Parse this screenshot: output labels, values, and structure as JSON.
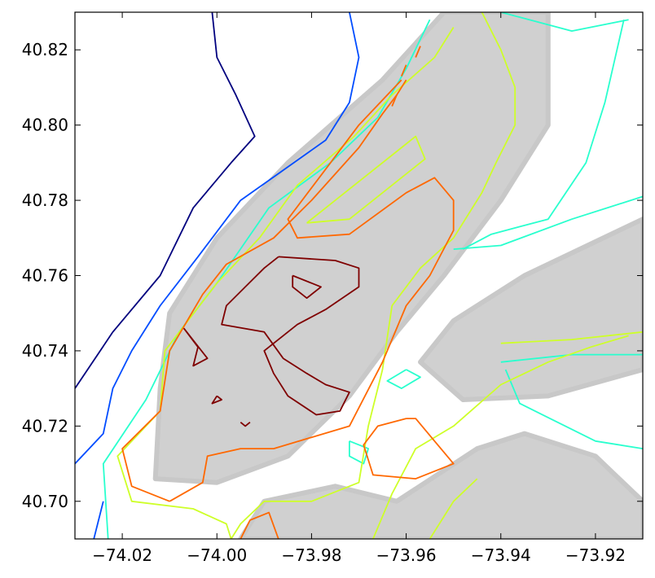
{
  "chart_data": {
    "type": "contour",
    "title": "",
    "xlabel": "",
    "ylabel": "",
    "xlim": [
      -74.03,
      -73.91
    ],
    "ylim": [
      40.69,
      40.83
    ],
    "x_ticks": [
      -74.02,
      -74.0,
      -73.98,
      -73.96,
      -73.94,
      -73.92
    ],
    "x_tick_labels": [
      "−74.02",
      "−74.00",
      "−73.98",
      "−73.96",
      "−73.94",
      "−73.92"
    ],
    "y_ticks": [
      40.7,
      40.72,
      40.74,
      40.76,
      40.78,
      40.8,
      40.82
    ],
    "y_tick_labels": [
      "40.70",
      "40.72",
      "40.74",
      "40.76",
      "40.78",
      "40.80",
      "40.82"
    ],
    "grid": false,
    "legend": "none",
    "scatter_color": "#c8c8c8",
    "scatter_regions": [
      {
        "name": "manhattan-core",
        "points": [
          [
            -74.013,
            40.706
          ],
          [
            -74.0,
            40.705
          ],
          [
            -73.985,
            40.712
          ],
          [
            -73.972,
            40.728
          ],
          [
            -73.962,
            40.745
          ],
          [
            -73.952,
            40.76
          ],
          [
            -73.94,
            40.78
          ],
          [
            -73.93,
            40.8
          ],
          [
            -73.93,
            40.83
          ],
          [
            -73.952,
            40.83
          ],
          [
            -73.965,
            40.812
          ],
          [
            -73.985,
            40.79
          ],
          [
            -74.0,
            40.77
          ],
          [
            -74.01,
            40.75
          ],
          [
            -74.012,
            40.73
          ]
        ]
      },
      {
        "name": "queens-grid",
        "points": [
          [
            -73.957,
            40.737
          ],
          [
            -73.95,
            40.748
          ],
          [
            -73.935,
            40.76
          ],
          [
            -73.91,
            40.775
          ],
          [
            -73.91,
            40.735
          ],
          [
            -73.93,
            40.728
          ],
          [
            -73.948,
            40.727
          ]
        ]
      },
      {
        "name": "brooklyn-grid",
        "points": [
          [
            -73.995,
            40.69
          ],
          [
            -73.99,
            40.7
          ],
          [
            -73.975,
            40.704
          ],
          [
            -73.962,
            40.7
          ],
          [
            -73.945,
            40.714
          ],
          [
            -73.935,
            40.718
          ],
          [
            -73.92,
            40.712
          ],
          [
            -73.91,
            40.7
          ],
          [
            -73.91,
            40.69
          ]
        ]
      }
    ],
    "contours": [
      {
        "level": 1,
        "color": "#00007f",
        "paths": [
          [
            [
              -74.03,
              40.73
            ],
            [
              -74.022,
              40.745
            ],
            [
              -74.012,
              40.76
            ],
            [
              -74.005,
              40.778
            ],
            [
              -73.997,
              40.79
            ],
            [
              -73.992,
              40.797
            ],
            [
              -73.996,
              40.808
            ],
            [
              -74.0,
              40.818
            ],
            [
              -74.001,
              40.83
            ]
          ]
        ]
      },
      {
        "level": 2,
        "color": "#004cff",
        "paths": [
          [
            [
              -74.03,
              40.71
            ],
            [
              -74.024,
              40.718
            ],
            [
              -74.022,
              40.73
            ],
            [
              -74.018,
              40.74
            ],
            [
              -74.012,
              40.752
            ],
            [
              -74.004,
              40.765
            ],
            [
              -73.995,
              40.78
            ],
            [
              -73.986,
              40.788
            ],
            [
              -73.977,
              40.796
            ],
            [
              -73.972,
              40.806
            ],
            [
              -73.97,
              40.818
            ],
            [
              -73.972,
              40.83
            ]
          ],
          [
            [
              -74.024,
              40.7
            ],
            [
              -74.026,
              40.69
            ]
          ]
        ]
      },
      {
        "level": 3,
        "color": "#29ffce",
        "paths": [
          [
            [
              -74.023,
              40.69
            ],
            [
              -74.024,
              40.71
            ],
            [
              -74.015,
              40.727
            ],
            [
              -74.008,
              40.745
            ],
            [
              -74.0,
              40.758
            ],
            [
              -73.989,
              40.778
            ],
            [
              -73.976,
              40.79
            ],
            [
              -73.966,
              40.802
            ],
            [
              -73.96,
              40.815
            ],
            [
              -73.955,
              40.828
            ]
          ],
          [
            [
              -73.94,
              40.83
            ],
            [
              -73.925,
              40.825
            ],
            [
              -73.917,
              40.827
            ],
            [
              -73.913,
              40.828
            ]
          ],
          [
            [
              -73.914,
              40.828
            ],
            [
              -73.918,
              40.806
            ],
            [
              -73.922,
              40.79
            ],
            [
              -73.93,
              40.775
            ],
            [
              -73.942,
              40.771
            ],
            [
              -73.948,
              40.767
            ]
          ],
          [
            [
              -73.91,
              40.781
            ],
            [
              -73.925,
              40.775
            ],
            [
              -73.94,
              40.768
            ],
            [
              -73.95,
              40.767
            ]
          ],
          [
            [
              -73.939,
              40.735
            ],
            [
              -73.936,
              40.726
            ],
            [
              -73.928,
              40.721
            ],
            [
              -73.92,
              40.716
            ],
            [
              -73.91,
              40.714
            ]
          ],
          [
            [
              -73.96,
              40.735
            ],
            [
              -73.957,
              40.733
            ],
            [
              -73.961,
              40.73
            ],
            [
              -73.964,
              40.732
            ],
            [
              -73.96,
              40.735
            ]
          ],
          [
            [
              -73.972,
              40.716
            ],
            [
              -73.968,
              40.714
            ],
            [
              -73.969,
              40.71
            ],
            [
              -73.972,
              40.712
            ],
            [
              -73.972,
              40.716
            ]
          ],
          [
            [
              -73.94,
              40.737
            ],
            [
              -73.925,
              40.739
            ],
            [
              -73.91,
              40.739
            ]
          ]
        ]
      },
      {
        "level": 4,
        "color": "#ceff29",
        "paths": [
          [
            [
              -73.997,
              40.69
            ],
            [
              -73.998,
              40.694
            ],
            [
              -74.005,
              40.698
            ],
            [
              -74.018,
              40.7
            ],
            [
              -74.021,
              40.712
            ],
            [
              -74.012,
              40.724
            ],
            [
              -74.011,
              40.74
            ],
            [
              -74.0,
              40.758
            ],
            [
              -73.991,
              40.77
            ],
            [
              -73.983,
              40.784
            ],
            [
              -73.971,
              40.797
            ],
            [
              -73.963,
              40.808
            ],
            [
              -73.954,
              40.818
            ],
            [
              -73.95,
              40.826
            ]
          ],
          [
            [
              -73.944,
              40.83
            ],
            [
              -73.94,
              40.82
            ],
            [
              -73.937,
              40.81
            ],
            [
              -73.937,
              40.8
            ],
            [
              -73.941,
              40.79
            ],
            [
              -73.944,
              40.782
            ],
            [
              -73.95,
              40.77
            ],
            [
              -73.957,
              40.762
            ],
            [
              -73.963,
              40.752
            ],
            [
              -73.965,
              40.735
            ],
            [
              -73.968,
              40.72
            ],
            [
              -73.97,
              40.705
            ],
            [
              -73.98,
              40.7
            ],
            [
              -73.99,
              40.7
            ],
            [
              -73.995,
              40.694
            ],
            [
              -73.997,
              40.69
            ]
          ],
          [
            [
              -73.981,
              40.774
            ],
            [
              -73.975,
              40.78
            ],
            [
              -73.962,
              40.793
            ],
            [
              -73.958,
              40.797
            ],
            [
              -73.956,
              40.791
            ],
            [
              -73.972,
              40.775
            ],
            [
              -73.981,
              40.774
            ]
          ],
          [
            [
              -73.967,
              40.69
            ],
            [
              -73.963,
              40.702
            ],
            [
              -73.958,
              40.714
            ],
            [
              -73.95,
              40.72
            ],
            [
              -73.94,
              40.731
            ],
            [
              -73.93,
              40.737
            ],
            [
              -73.921,
              40.741
            ],
            [
              -73.913,
              40.744
            ]
          ],
          [
            [
              -73.955,
              40.69
            ],
            [
              -73.95,
              40.7
            ],
            [
              -73.945,
              40.706
            ]
          ],
          [
            [
              -73.94,
              40.742
            ],
            [
              -73.925,
              40.743
            ],
            [
              -73.91,
              40.745
            ]
          ]
        ]
      },
      {
        "level": 5,
        "color": "#ff6800",
        "paths": [
          [
            [
              -74.01,
              40.7
            ],
            [
              -74.018,
              40.704
            ],
            [
              -74.02,
              40.714
            ],
            [
              -74.012,
              40.724
            ],
            [
              -74.01,
              40.74
            ],
            [
              -74.003,
              40.755
            ],
            [
              -73.998,
              40.763
            ],
            [
              -73.988,
              40.77
            ],
            [
              -73.98,
              40.78
            ],
            [
              -73.97,
              40.794
            ],
            [
              -73.965,
              40.803
            ],
            [
              -73.962,
              40.808
            ],
            [
              -73.96,
              40.812
            ]
          ],
          [
            [
              -73.961,
              40.812
            ],
            [
              -73.97,
              40.8
            ],
            [
              -73.976,
              40.79
            ],
            [
              -73.985,
              40.775
            ],
            [
              -73.983,
              40.77
            ],
            [
              -73.972,
              40.771
            ],
            [
              -73.96,
              40.782
            ],
            [
              -73.954,
              40.786
            ],
            [
              -73.95,
              40.78
            ],
            [
              -73.95,
              40.772
            ],
            [
              -73.955,
              40.76
            ],
            [
              -73.96,
              40.752
            ],
            [
              -73.965,
              40.737
            ],
            [
              -73.972,
              40.72
            ],
            [
              -73.988,
              40.714
            ],
            [
              -73.995,
              40.714
            ],
            [
              -74.002,
              40.712
            ],
            [
              -74.003,
              40.705
            ],
            [
              -74.01,
              40.7
            ]
          ],
          [
            [
              -73.96,
              40.722
            ],
            [
              -73.966,
              40.72
            ],
            [
              -73.969,
              40.715
            ],
            [
              -73.967,
              40.707
            ],
            [
              -73.958,
              40.706
            ],
            [
              -73.95,
              40.71
            ],
            [
              -73.954,
              40.716
            ],
            [
              -73.958,
              40.722
            ],
            [
              -73.96,
              40.722
            ]
          ],
          [
            [
              -73.995,
              40.69
            ],
            [
              -73.993,
              40.695
            ],
            [
              -73.989,
              40.697
            ],
            [
              -73.987,
              40.69
            ]
          ],
          [
            [
              -73.963,
              40.805
            ],
            [
              -73.962,
              40.808
            ]
          ],
          [
            [
              -73.961,
              40.813
            ],
            [
              -73.96,
              40.816
            ]
          ],
          [
            [
              -73.958,
              40.818
            ],
            [
              -73.957,
              40.821
            ]
          ]
        ]
      },
      {
        "level": 6,
        "color": "#7f0000",
        "paths": [
          [
            [
              -73.987,
              40.765
            ],
            [
              -73.975,
              40.764
            ],
            [
              -73.97,
              40.762
            ],
            [
              -73.97,
              40.757
            ],
            [
              -73.977,
              40.751
            ],
            [
              -73.983,
              40.747
            ],
            [
              -73.99,
              40.74
            ],
            [
              -73.988,
              40.734
            ],
            [
              -73.985,
              40.728
            ],
            [
              -73.979,
              40.723
            ],
            [
              -73.974,
              40.724
            ],
            [
              -73.972,
              40.729
            ],
            [
              -73.977,
              40.731
            ],
            [
              -73.981,
              40.734
            ],
            [
              -73.986,
              40.738
            ],
            [
              -73.99,
              40.745
            ],
            [
              -73.999,
              40.747
            ],
            [
              -73.998,
              40.752
            ],
            [
              -73.994,
              40.757
            ],
            [
              -73.99,
              40.762
            ],
            [
              -73.987,
              40.765
            ]
          ],
          [
            [
              -73.984,
              40.76
            ],
            [
              -73.978,
              40.757
            ],
            [
              -73.981,
              40.754
            ],
            [
              -73.984,
              40.757
            ],
            [
              -73.984,
              40.76
            ]
          ],
          [
            [
              -74.007,
              40.746
            ],
            [
              -74.004,
              40.741
            ],
            [
              -74.005,
              40.736
            ],
            [
              -74.002,
              40.738
            ],
            [
              -74.007,
              40.746
            ]
          ],
          [
            [
              -74.0,
              40.728
            ],
            [
              -73.999,
              40.727
            ],
            [
              -74.001,
              40.726
            ],
            [
              -74.0,
              40.728
            ]
          ],
          [
            [
              -73.995,
              40.721
            ],
            [
              -73.994,
              40.72
            ],
            [
              -73.993,
              40.721
            ]
          ]
        ]
      }
    ]
  }
}
